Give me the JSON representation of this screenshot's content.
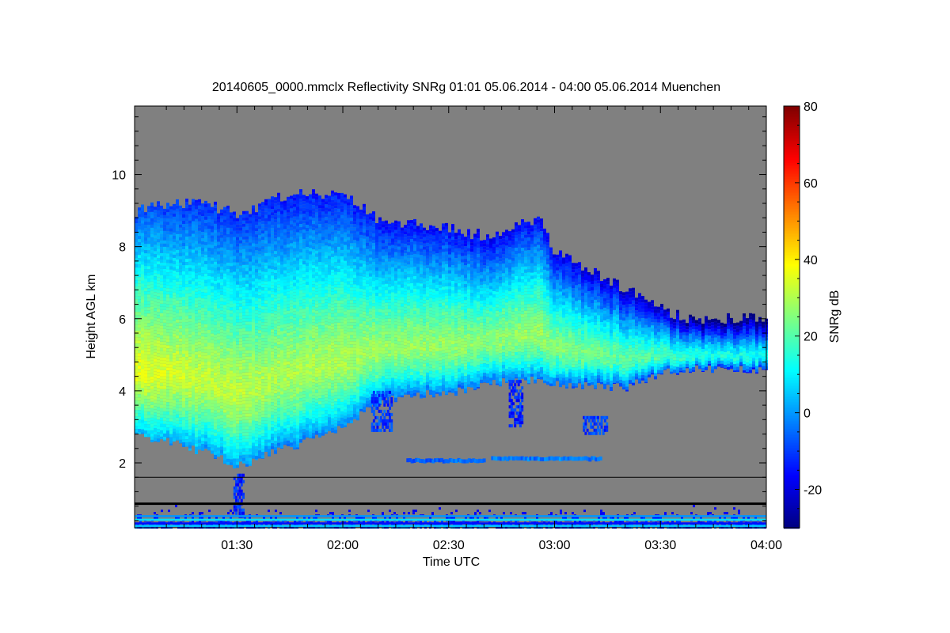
{
  "chart_data": {
    "type": "heatmap",
    "title": "20140605_0000.mmclx Reflectivity SNRg   01:01 05.06.2014 - 04:00 05.06.2014 Muenchen",
    "xlabel": "Time UTC",
    "ylabel": "Height AGL km",
    "x_range_minutes": [
      61,
      240
    ],
    "y_range_km": [
      0.2,
      11.9
    ],
    "x_ticks": [
      {
        "minute": 90,
        "label": "01:30"
      },
      {
        "minute": 120,
        "label": "02:00"
      },
      {
        "minute": 150,
        "label": "02:30"
      },
      {
        "minute": 180,
        "label": "03:00"
      },
      {
        "minute": 210,
        "label": "03:30"
      },
      {
        "minute": 240,
        "label": "04:00"
      }
    ],
    "y_ticks": [
      {
        "value": 2,
        "label": "2"
      },
      {
        "value": 4,
        "label": "4"
      },
      {
        "value": 6,
        "label": "6"
      },
      {
        "value": 8,
        "label": "8"
      },
      {
        "value": 10,
        "label": "10"
      }
    ],
    "reference_line_km": 1.6,
    "colorbar": {
      "label": "SNRg dB",
      "range": [
        -30,
        80
      ],
      "ticks": [
        {
          "value": -20,
          "label": "-20"
        },
        {
          "value": 0,
          "label": "0"
        },
        {
          "value": 20,
          "label": "20"
        },
        {
          "value": 40,
          "label": "40"
        },
        {
          "value": 60,
          "label": "60"
        },
        {
          "value": 80,
          "label": "80"
        }
      ]
    },
    "background_color": "#808080",
    "cloud_profile": {
      "description": "Approximate main cloud layer boundaries (km) vs time (minutes after 00:00 UTC) with core SNR (dB)",
      "minutes": [
        61,
        70,
        80,
        90,
        100,
        110,
        120,
        130,
        140,
        150,
        160,
        170,
        175,
        180,
        190,
        200,
        210,
        220,
        230,
        240
      ],
      "top_km": [
        9.0,
        9.2,
        9.2,
        8.9,
        9.3,
        9.5,
        9.4,
        8.7,
        8.7,
        8.5,
        8.3,
        8.7,
        8.8,
        7.8,
        7.3,
        6.8,
        6.3,
        5.9,
        6.0,
        6.0
      ],
      "base_km": [
        2.7,
        2.6,
        2.3,
        1.9,
        2.3,
        2.6,
        3.0,
        3.7,
        3.9,
        3.9,
        4.2,
        4.3,
        4.3,
        4.2,
        4.1,
        4.1,
        4.5,
        4.6,
        4.6,
        4.6
      ],
      "core_snr_db": [
        36,
        34,
        32,
        32,
        30,
        30,
        30,
        28,
        28,
        28,
        26,
        28,
        28,
        26,
        24,
        22,
        20,
        16,
        14,
        14
      ]
    },
    "secondary_layers": [
      {
        "start_minute": 138,
        "end_minute": 160,
        "height_km": 2.05,
        "snr_db": -5
      },
      {
        "start_minute": 162,
        "end_minute": 193,
        "height_km": 2.1,
        "snr_db": -3
      }
    ],
    "fall_streaks": [
      {
        "start_minute": 128,
        "end_minute": 134,
        "top_km": 4.0,
        "bottom_km": 2.9,
        "snr_db": -10
      },
      {
        "start_minute": 167,
        "end_minute": 171,
        "top_km": 4.3,
        "bottom_km": 3.0,
        "snr_db": -12
      },
      {
        "start_minute": 188,
        "end_minute": 195,
        "top_km": 3.3,
        "bottom_km": 2.8,
        "snr_db": -10
      },
      {
        "start_minute": 89,
        "end_minute": 92,
        "top_km": 1.7,
        "bottom_km": 0.5,
        "snr_db": -12
      }
    ],
    "near_surface_clutter": {
      "top_km": 0.9,
      "snr_db": -18
    }
  }
}
